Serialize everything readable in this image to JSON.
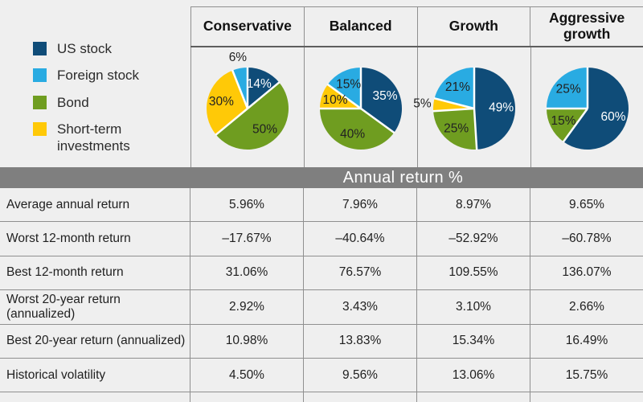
{
  "colors": {
    "background": "#efefef",
    "border": "#8f8f8f",
    "section_bar": "#7f7f7f",
    "text": "#1f1f1f",
    "pie_label_light": "#ffffff",
    "pie_label_dark": "#222222"
  },
  "assets": [
    {
      "name": "US stock",
      "color": "#0f4c78"
    },
    {
      "name": "Foreign stock",
      "color": "#29abe2"
    },
    {
      "name": "Bond",
      "color": "#6f9d20"
    },
    {
      "name": "Short-term investments",
      "color": "#ffc907"
    }
  ],
  "chart_data": {
    "type": "pie",
    "legend": [
      "US stock",
      "Foreign stock",
      "Bond",
      "Short-term investments"
    ],
    "legend_position": "top-left",
    "pies": [
      {
        "name": "Conservative",
        "slices": [
          {
            "asset": "US stock",
            "value": 14,
            "label": "14%"
          },
          {
            "asset": "Bond",
            "value": 50,
            "label": "50%"
          },
          {
            "asset": "Short-term investments",
            "value": 30,
            "label": "30%"
          },
          {
            "asset": "Foreign stock",
            "value": 6,
            "label": "6%",
            "label_outside": true
          }
        ]
      },
      {
        "name": "Balanced",
        "slices": [
          {
            "asset": "US stock",
            "value": 35,
            "label": "35%"
          },
          {
            "asset": "Bond",
            "value": 40,
            "label": "40%"
          },
          {
            "asset": "Short-term investments",
            "value": 10,
            "label": "10%"
          },
          {
            "asset": "Foreign stock",
            "value": 15,
            "label": "15%"
          }
        ]
      },
      {
        "name": "Growth",
        "slices": [
          {
            "asset": "US stock",
            "value": 49,
            "label": "49%"
          },
          {
            "asset": "Bond",
            "value": 25,
            "label": "25%"
          },
          {
            "asset": "Short-term investments",
            "value": 5,
            "label": "5%",
            "label_outside": true
          },
          {
            "asset": "Foreign stock",
            "value": 21,
            "label": "21%"
          }
        ]
      },
      {
        "name": "Aggressive growth",
        "slices": [
          {
            "asset": "US stock",
            "value": 60,
            "label": "60%"
          },
          {
            "asset": "Bond",
            "value": 15,
            "label": "15%"
          },
          {
            "asset": "Foreign stock",
            "value": 25,
            "label": "25%"
          }
        ]
      }
    ],
    "table": {
      "section_header": "Annual return %",
      "columns": [
        "Conservative",
        "Balanced",
        "Growth",
        "Aggressive growth"
      ],
      "rows": [
        {
          "label": "Average annual return",
          "values": [
            "5.96%",
            "7.96%",
            "8.97%",
            "9.65%"
          ]
        },
        {
          "label": "Worst 12-month return",
          "values": [
            "–17.67%",
            "–40.64%",
            "–52.92%",
            "–60.78%"
          ]
        },
        {
          "label": "Best 12-month return",
          "values": [
            "31.06%",
            "76.57%",
            "109.55%",
            "136.07%"
          ]
        },
        {
          "label": "Worst 20-year return (annualized)",
          "values": [
            "2.92%",
            "3.43%",
            "3.10%",
            "2.66%"
          ]
        },
        {
          "label": "Best 20-year return (annualized)",
          "values": [
            "10.98%",
            "13.83%",
            "15.34%",
            "16.49%"
          ]
        },
        {
          "label": "Historical volatility",
          "values": [
            "4.50%",
            "9.56%",
            "13.06%",
            "15.75%"
          ]
        }
      ]
    }
  }
}
